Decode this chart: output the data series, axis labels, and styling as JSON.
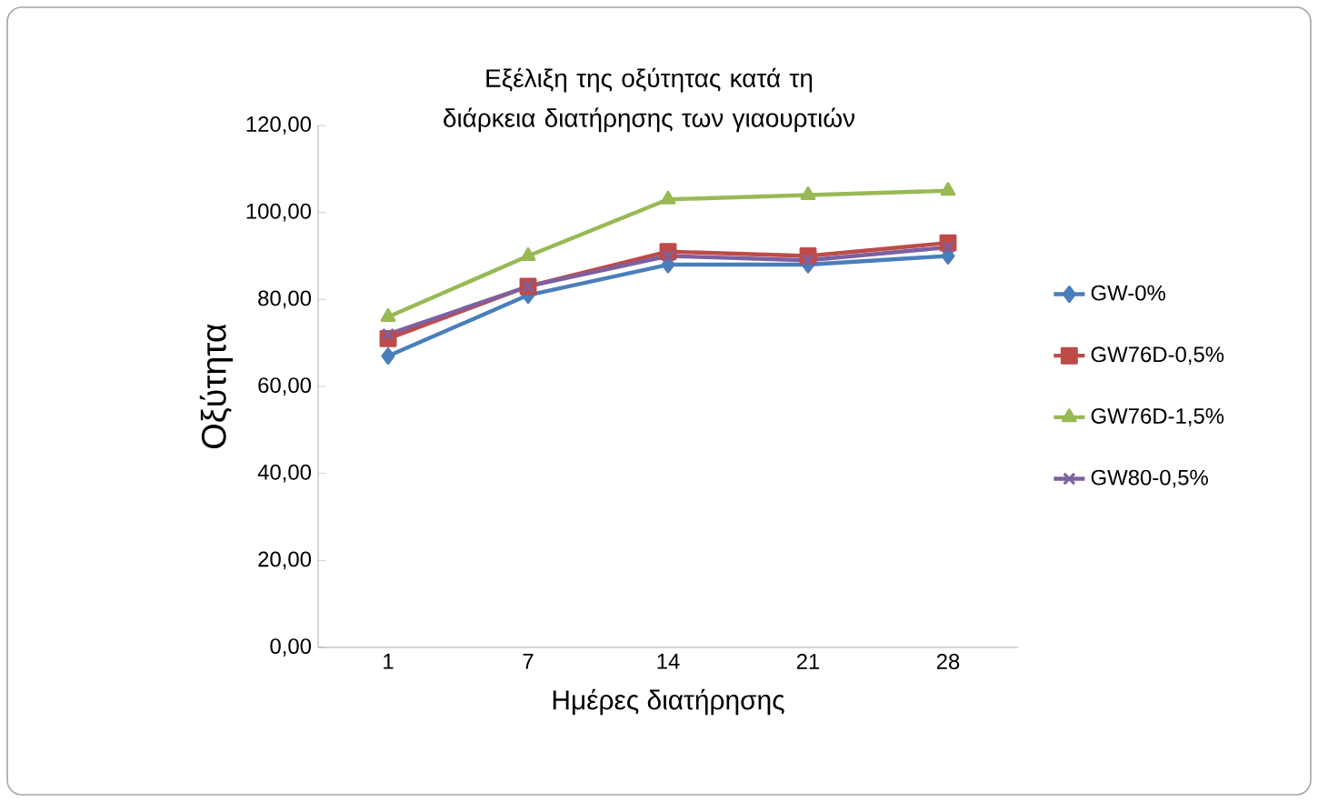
{
  "chart_data": {
    "type": "line",
    "title": "Εξέλιξη της οξύτητας κατά τη διάρκεια διατήρησης των γιαουρτιών",
    "xlabel": "Ημέρες διατήρησης",
    "ylabel": "Οξύτητα",
    "categories": [
      "1",
      "7",
      "14",
      "21",
      "28"
    ],
    "series": [
      {
        "name": "GW-0%",
        "color": "#4a7ebb",
        "marker": "diamond",
        "values": [
          67,
          81,
          88,
          88,
          90
        ]
      },
      {
        "name": "GW76D-0,5%",
        "color": "#be4b48",
        "marker": "square",
        "values": [
          71,
          83,
          91,
          90,
          93
        ]
      },
      {
        "name": "GW76D-1,5%",
        "color": "#98b954",
        "marker": "triangle",
        "values": [
          76,
          90,
          103,
          104,
          105
        ]
      },
      {
        "name": "GW80-0,5%",
        "color": "#7d60a0",
        "marker": "cross",
        "values": [
          72,
          83,
          90,
          89,
          92
        ]
      }
    ],
    "ylim": [
      0,
      120
    ],
    "yticks": [
      {
        "value": 0,
        "label": "0,00"
      },
      {
        "value": 20,
        "label": "20,00"
      },
      {
        "value": 40,
        "label": "40,00"
      },
      {
        "value": 60,
        "label": "60,00"
      },
      {
        "value": 80,
        "label": "80,00"
      },
      {
        "value": 100,
        "label": "100,00"
      },
      {
        "value": 120,
        "label": "120,00"
      }
    ],
    "legend": "right",
    "line_style": "solid"
  }
}
